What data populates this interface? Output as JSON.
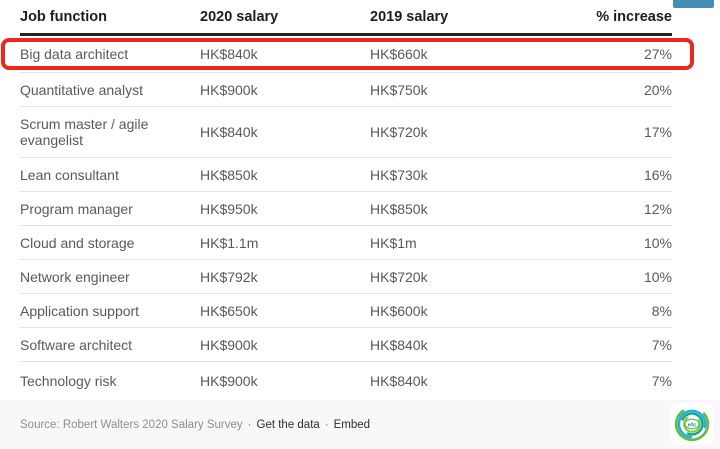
{
  "chart_data": {
    "type": "table",
    "columns": [
      "Job function",
      "2020 salary",
      "2019 salary",
      "% increase"
    ],
    "rows": [
      [
        "Big data architect",
        "HK$840k",
        "HK$660k",
        "27%"
      ],
      [
        "Quantitative analyst",
        "HK$900k",
        "HK$750k",
        "20%"
      ],
      [
        "Scrum master / agile evangelist",
        "HK$840k",
        "HK$720k",
        "17%"
      ],
      [
        "Lean consultant",
        "HK$850k",
        "HK$730k",
        "16%"
      ],
      [
        "Program manager",
        "HK$950k",
        "HK$850k",
        "12%"
      ],
      [
        "Cloud and storage",
        "HK$1.1m",
        "HK$1m",
        "10%"
      ],
      [
        "Network engineer",
        "HK$792k",
        "HK$720k",
        "10%"
      ],
      [
        "Application support",
        "HK$650k",
        "HK$600k",
        "8%"
      ],
      [
        "Software architect",
        "HK$900k",
        "HK$840k",
        "7%"
      ],
      [
        "Technology risk",
        "HK$900k",
        "HK$840k",
        "7%"
      ]
    ],
    "highlighted_row_index": 0,
    "source": "Robert Walters 2020 Salary Survey",
    "layout_hints": "first data row outlined with red annotation box; numeric % column right-aligned"
  },
  "footer": {
    "source_text": "Source: Robert Walters 2020 Salary Survey",
    "dot": "·",
    "get_data_label": "Get the data",
    "embed_label": "Embed",
    "logo_text": "efc"
  },
  "icons": {
    "logo": "efc-swirl-logo"
  },
  "colors": {
    "highlight_red": "#e8291c",
    "partial_button_blue": "#458cb3",
    "header_rule": "#262220",
    "row_divider": "#e3e3e3",
    "header_text": "#1d1d1d",
    "body_text": "#595959",
    "footer_text_muted": "#8e8e8e",
    "footer_link": "#2e2e2e",
    "footer_bg": "#f8f8f8",
    "logo_green": "#62bb46",
    "logo_blue": "#29aae1",
    "logo_teal": "#00a88f"
  }
}
